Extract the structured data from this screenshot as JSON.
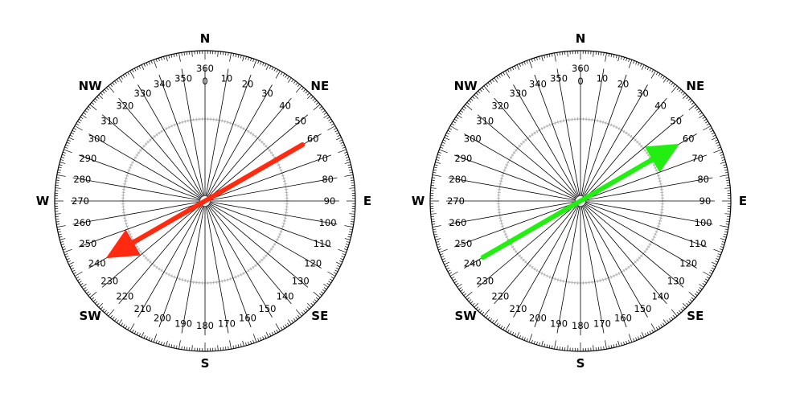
{
  "compasses": [
    {
      "cardinals": {
        "n": "N",
        "e": "E",
        "s": "S",
        "w": "W"
      },
      "intercardinals": {
        "ne": "NE",
        "se": "SE",
        "sw": "SW",
        "nw": "NW"
      },
      "degree_labels": [
        "360",
        "0",
        "10",
        "20",
        "30",
        "40",
        "50",
        "60",
        "70",
        "80",
        "90",
        "100",
        "110",
        "120",
        "130",
        "140",
        "150",
        "160",
        "170",
        "180",
        "190",
        "200",
        "210",
        "220",
        "230",
        "240",
        "250",
        "260",
        "270",
        "280",
        "290",
        "300",
        "310",
        "320",
        "330",
        "340",
        "350"
      ],
      "arrow": {
        "from_bearing_deg": 60,
        "to_bearing_deg": 240,
        "color": "#ff2a10"
      }
    },
    {
      "cardinals": {
        "n": "N",
        "e": "E",
        "s": "S",
        "w": "W"
      },
      "intercardinals": {
        "ne": "NE",
        "se": "SE",
        "sw": "SW",
        "nw": "NW"
      },
      "degree_labels": [
        "360",
        "0",
        "10",
        "20",
        "30",
        "40",
        "50",
        "60",
        "70",
        "80",
        "90",
        "100",
        "110",
        "120",
        "130",
        "140",
        "150",
        "160",
        "170",
        "180",
        "190",
        "200",
        "210",
        "220",
        "230",
        "240",
        "250",
        "260",
        "270",
        "280",
        "290",
        "300",
        "310",
        "320",
        "330",
        "340",
        "350"
      ],
      "arrow": {
        "from_bearing_deg": 240,
        "to_bearing_deg": 60,
        "color": "#22ee11"
      }
    }
  ]
}
